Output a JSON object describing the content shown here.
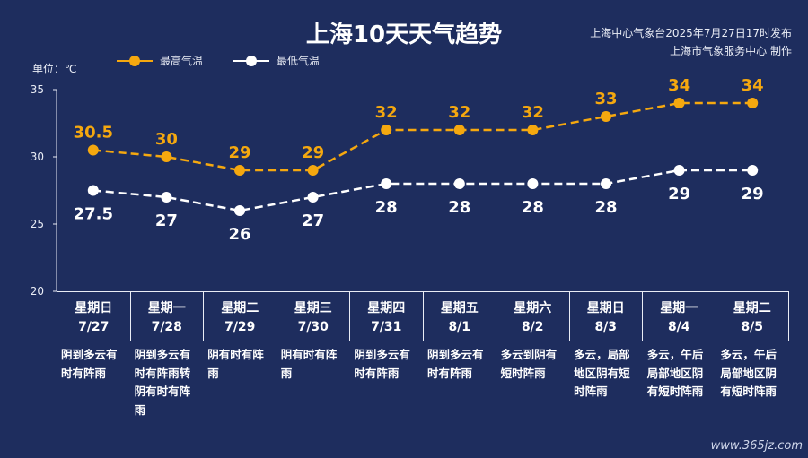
{
  "header": {
    "title": "上海10天天气趋势",
    "issuer": "上海中心气象台2025年7月27日17时发布",
    "producer": "上海市气象服务中心 制作"
  },
  "unit_label": "单位：℃",
  "watermark": "www.365jz.com",
  "colors": {
    "background": "#1e2d5e",
    "high": "#f5a80f",
    "low": "#ffffff"
  },
  "chart_data": {
    "type": "line",
    "x": [
      "7/27",
      "7/28",
      "7/29",
      "7/30",
      "7/31",
      "8/1",
      "8/2",
      "8/3",
      "8/4",
      "8/5"
    ],
    "series": [
      {
        "name": "最高气温",
        "values": [
          30.5,
          30,
          29,
          29,
          32,
          32,
          32,
          33,
          34,
          34
        ]
      },
      {
        "name": "最低气温",
        "values": [
          27.5,
          27,
          26,
          27,
          28,
          28,
          28,
          28,
          29,
          29
        ]
      }
    ],
    "data_labels": {
      "high": [
        "30.5",
        "30",
        "29",
        "29",
        "32",
        "32",
        "32",
        "33",
        "34",
        "34"
      ],
      "low": [
        "27.5",
        "27",
        "26",
        "27",
        "28",
        "28",
        "28",
        "28",
        "29",
        "29"
      ]
    },
    "ylim": [
      20,
      35
    ],
    "yticks": [
      "20",
      "25",
      "30",
      "35"
    ],
    "grid": false,
    "legend_position": "top-left",
    "line_style": "dashed"
  },
  "days": [
    {
      "weekday": "星期日",
      "date": "7/27",
      "desc": "阴到多云有时有阵雨"
    },
    {
      "weekday": "星期一",
      "date": "7/28",
      "desc": "阴到多云有时有阵雨转阴有时有阵雨"
    },
    {
      "weekday": "星期二",
      "date": "7/29",
      "desc": "阴有时有阵雨"
    },
    {
      "weekday": "星期三",
      "date": "7/30",
      "desc": "阴有时有阵雨"
    },
    {
      "weekday": "星期四",
      "date": "7/31",
      "desc": "阴到多云有时有阵雨"
    },
    {
      "weekday": "星期五",
      "date": "8/1",
      "desc": "阴到多云有时有阵雨"
    },
    {
      "weekday": "星期六",
      "date": "8/2",
      "desc": "多云到阴有短时阵雨"
    },
    {
      "weekday": "星期日",
      "date": "8/3",
      "desc": "多云，局部地区阴有短时阵雨"
    },
    {
      "weekday": "星期一",
      "date": "8/4",
      "desc": "多云，午后局部地区阴有短时阵雨"
    },
    {
      "weekday": "星期二",
      "date": "8/5",
      "desc": "多云，午后局部地区阴有短时阵雨"
    }
  ]
}
